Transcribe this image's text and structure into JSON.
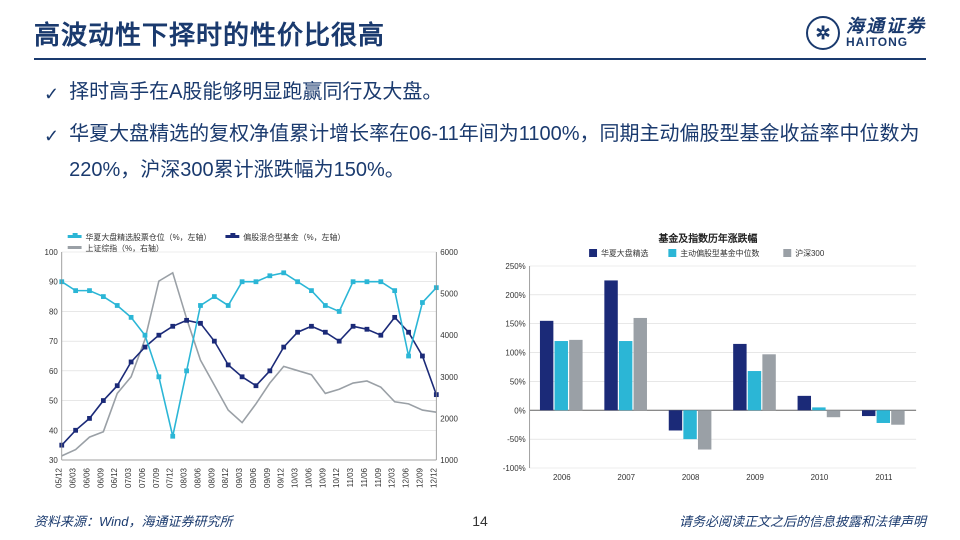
{
  "header": {
    "title": "高波动性下择时的性价比很高",
    "logo_cn": "海通证券",
    "logo_en": "HAITONG"
  },
  "bullets": [
    "择时高手在A股能够明显跑赢同行及大盘。",
    "华夏大盘精选的复权净值累计增长率在06-11年间为1100%，同期主动偏股型基金收益率中位数为220%，沪深300累计涨跌幅为150%。"
  ],
  "footer": {
    "source": "资料来源：Wind，海通证券研究所",
    "page": "14",
    "legal": "请务必阅读正文之后的信息披露和法律声明"
  },
  "colors": {
    "brand": "#1a3a6e",
    "cyan": "#2bb6d6",
    "navy": "#1b2a78",
    "gray": "#9aa0a6",
    "grid": "#cfcfcf",
    "bg": "#ffffff"
  },
  "line_chart": {
    "type": "dual-axis-line",
    "legend": [
      {
        "label": "华夏大盘精选股票仓位（%，左轴）",
        "color": "#2bb6d6",
        "marker": "square"
      },
      {
        "label": "偏股混合型基金（%，左轴）",
        "color": "#1b2a78",
        "marker": "square"
      },
      {
        "label": "上证综指（%，右轴）",
        "color": "#9aa0a6",
        "marker": "line"
      }
    ],
    "x_labels": [
      "05/12",
      "06/03",
      "06/06",
      "06/09",
      "06/12",
      "07/03",
      "07/06",
      "07/09",
      "07/12",
      "08/03",
      "08/06",
      "08/09",
      "08/12",
      "09/03",
      "09/06",
      "09/09",
      "09/12",
      "10/03",
      "10/06",
      "10/09",
      "10/12",
      "11/03",
      "11/06",
      "11/09",
      "12/03",
      "12/06",
      "12/09",
      "12/12"
    ],
    "y_left": {
      "min": 30,
      "max": 100,
      "step": 10
    },
    "y_right": {
      "min": 1000,
      "max": 6000,
      "step": 1000
    },
    "series_cyan": [
      90,
      87,
      87,
      85,
      82,
      78,
      72,
      58,
      38,
      60,
      82,
      85,
      82,
      90,
      90,
      92,
      93,
      90,
      87,
      82,
      80,
      90,
      90,
      90,
      87,
      65,
      83,
      88
    ],
    "series_navy": [
      35,
      40,
      44,
      50,
      55,
      63,
      68,
      72,
      75,
      77,
      76,
      70,
      62,
      58,
      55,
      60,
      68,
      73,
      75,
      73,
      70,
      75,
      74,
      72,
      78,
      73,
      65,
      52
    ],
    "series_gray_right": [
      1100,
      1250,
      1550,
      1680,
      2600,
      3000,
      3900,
      5300,
      5500,
      4400,
      3400,
      2800,
      2200,
      1900,
      2350,
      2850,
      3250,
      3150,
      3050,
      2600,
      2700,
      2850,
      2900,
      2750,
      2400,
      2350,
      2200,
      2150
    ],
    "line_width": 1.6,
    "marker_size": 2.4,
    "background": "#ffffff",
    "grid_color": "#d9d9d9",
    "label_fontsize": 8
  },
  "bar_chart": {
    "type": "grouped-bar",
    "title": "基金及指数历年涨跌幅",
    "legend": [
      {
        "label": "华夏大盘精选",
        "color": "#1b2a78"
      },
      {
        "label": "主动偏股型基金中位数",
        "color": "#2bb6d6"
      },
      {
        "label": "沪深300",
        "color": "#9aa0a6"
      }
    ],
    "categories": [
      "2006",
      "2007",
      "2008",
      "2009",
      "2010",
      "2011"
    ],
    "series": {
      "navy": [
        155,
        225,
        -35,
        115,
        25,
        -10
      ],
      "cyan": [
        120,
        120,
        -50,
        68,
        5,
        -22
      ],
      "gray": [
        122,
        160,
        -68,
        97,
        -12,
        -25
      ]
    },
    "ylim": [
      -100,
      250
    ],
    "ytick_step": 50,
    "bar_group_width": 0.68,
    "background": "#ffffff",
    "grid_color": "#d9d9d9",
    "title_fontsize": 10,
    "label_fontsize": 8
  }
}
